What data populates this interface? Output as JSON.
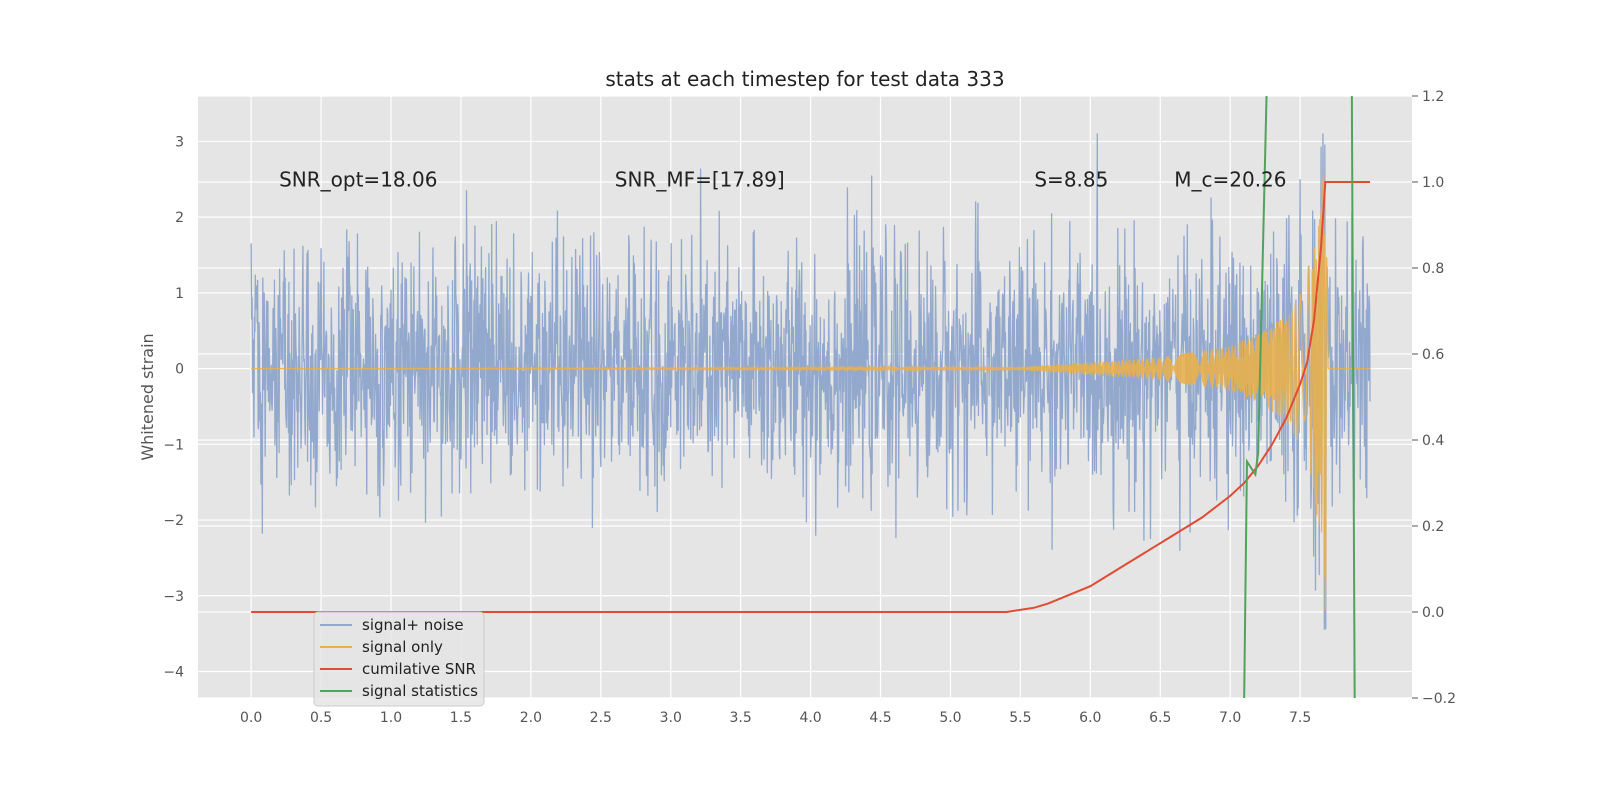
{
  "chart_data": {
    "type": "line",
    "title": "stats at each timestep for test data 333",
    "xlabel": "",
    "ylabel": "Whitened strain",
    "xlim": [
      -0.38,
      8.3
    ],
    "ylim": [
      -4.35,
      3.6
    ],
    "y2lim": [
      -0.2,
      1.2
    ],
    "grid": true,
    "x_ticks": [
      "0.0",
      "0.5",
      "1.0",
      "1.5",
      "2.0",
      "2.5",
      "3.0",
      "3.5",
      "4.0",
      "4.5",
      "5.0",
      "5.5",
      "6.0",
      "6.5",
      "7.0",
      "7.5"
    ],
    "y_ticks": [
      "3",
      "2",
      "1",
      "0",
      "−1",
      "−2",
      "−3",
      "−4"
    ],
    "y2_ticks": [
      "1.2",
      "1.0",
      "0.8",
      "0.6",
      "0.4",
      "0.2",
      "0.0",
      "−0.2"
    ],
    "annotations": [
      {
        "id": "snr-opt",
        "text": "SNR_opt=18.06",
        "x": 0.2,
        "y": 2.5
      },
      {
        "id": "snr-mf",
        "text": "SNR_MF=[17.89]",
        "x": 2.6,
        "y": 2.5
      },
      {
        "id": "s-stat",
        "text": "S=8.85",
        "x": 5.6,
        "y": 2.5
      },
      {
        "id": "chirp-mass",
        "text": "M_c=20.26",
        "x": 6.6,
        "y": 2.5
      }
    ],
    "legend": {
      "location": "lower-left",
      "entries": [
        {
          "label": "signal+ noise",
          "color": "#92a8cd"
        },
        {
          "label": "signal only",
          "color": "#e8b04c"
        },
        {
          "label": "cumilative SNR",
          "color": "#e24a33"
        },
        {
          "label": "signal statistics",
          "color": "#4fa35a"
        }
      ]
    },
    "series": [
      {
        "name": "signal+ noise",
        "axis": "left",
        "color": "#92a8cd",
        "style": "gaussian noise, std ~0.8, t=0 to 8",
        "x_range": [
          0,
          8.0
        ],
        "approx_extremes": {
          "max": 3.1,
          "min": -4.0
        }
      },
      {
        "name": "signal only",
        "axis": "left",
        "color": "#e8b04c",
        "style": "chirp, growing amplitude, merger near t=7.68",
        "x": [
          0.0,
          5.5,
          6.5,
          7.0,
          7.2,
          7.4,
          7.5,
          7.6,
          7.65,
          7.68,
          7.7,
          8.0
        ],
        "envelope": [
          0.0,
          0.02,
          0.15,
          0.3,
          0.45,
          0.7,
          1.0,
          1.6,
          2.6,
          3.2,
          0.0,
          0.0
        ]
      },
      {
        "name": "cumilative SNR",
        "axis": "right",
        "color": "#e24a33",
        "x": [
          0.0,
          5.4,
          5.6,
          5.7,
          5.85,
          6.0,
          6.2,
          6.4,
          6.6,
          6.8,
          7.0,
          7.1,
          7.2,
          7.3,
          7.4,
          7.5,
          7.55,
          7.6,
          7.65,
          7.68,
          7.7,
          8.0
        ],
        "y": [
          0.0,
          0.0,
          0.01,
          0.02,
          0.04,
          0.06,
          0.1,
          0.14,
          0.18,
          0.22,
          0.27,
          0.3,
          0.34,
          0.39,
          0.45,
          0.53,
          0.58,
          0.68,
          0.85,
          1.0,
          1.0,
          1.0
        ]
      },
      {
        "name": "signal statistics",
        "axis": "right",
        "color": "#4fa35a",
        "x": [
          7.1,
          7.12,
          7.18,
          7.2,
          7.26
        ],
        "y": [
          -0.2,
          0.35,
          0.32,
          0.37,
          1.2
        ],
        "x2": [
          7.87,
          7.89
        ],
        "y2": [
          1.2,
          -0.2
        ]
      }
    ]
  }
}
